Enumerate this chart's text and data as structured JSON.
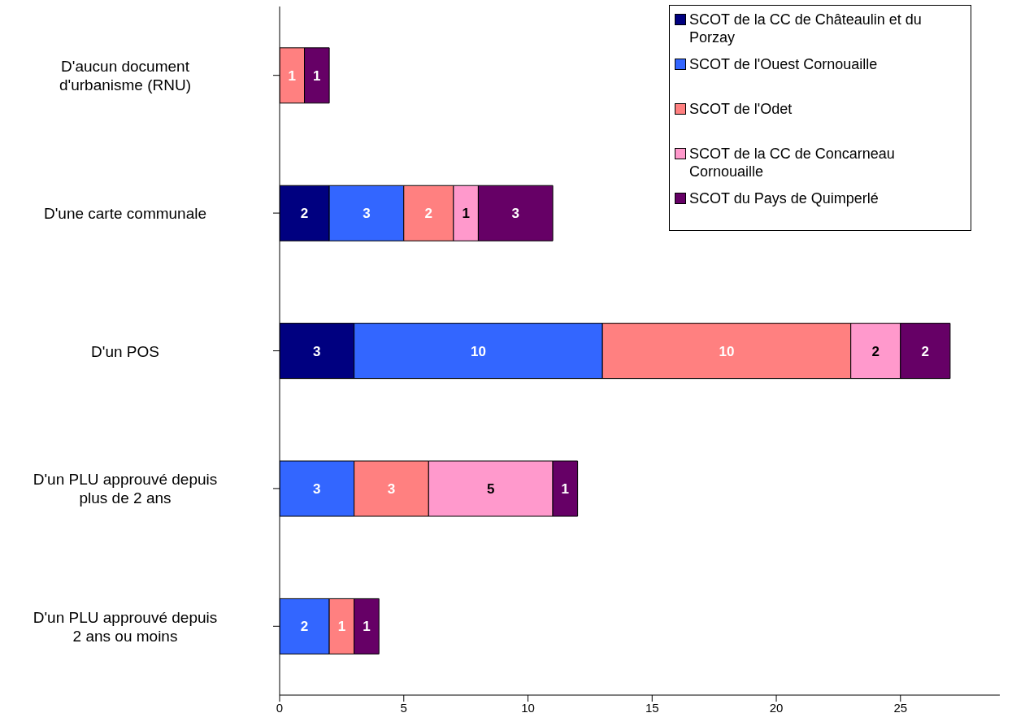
{
  "chart_data": {
    "type": "bar",
    "orientation": "horizontal",
    "stacked": true,
    "categories": [
      "D'aucun document d'urbanisme (RNU)",
      "D'une carte communale",
      "D'un POS",
      "D'un PLU approuvé depuis plus de 2 ans",
      "D'un PLU approuvé depuis 2 ans ou moins"
    ],
    "series": [
      {
        "name": "SCOT de la CC de Châteaulin et du Porzay",
        "color": "#000080",
        "values": [
          null,
          2,
          3,
          null,
          null
        ]
      },
      {
        "name": "SCOT de l'Ouest Cornouaille",
        "color": "#3366ff",
        "values": [
          null,
          3,
          10,
          3,
          2
        ]
      },
      {
        "name": "SCOT de l'Odet",
        "color": "#ff8080",
        "values": [
          1,
          2,
          10,
          3,
          1
        ]
      },
      {
        "name": "SCOT de la CC de Concarneau Cornouaille",
        "color": "#ff99cc",
        "values": [
          null,
          1,
          2,
          5,
          null
        ]
      },
      {
        "name": "SCOT du Pays de Quimperlé",
        "color": "#660066",
        "values": [
          1,
          3,
          2,
          1,
          1
        ]
      }
    ],
    "xlim": [
      0,
      29
    ],
    "xticks": [
      0,
      5,
      10,
      15,
      20,
      25
    ],
    "grid": false,
    "legend": "top right",
    "data_labels": true
  }
}
